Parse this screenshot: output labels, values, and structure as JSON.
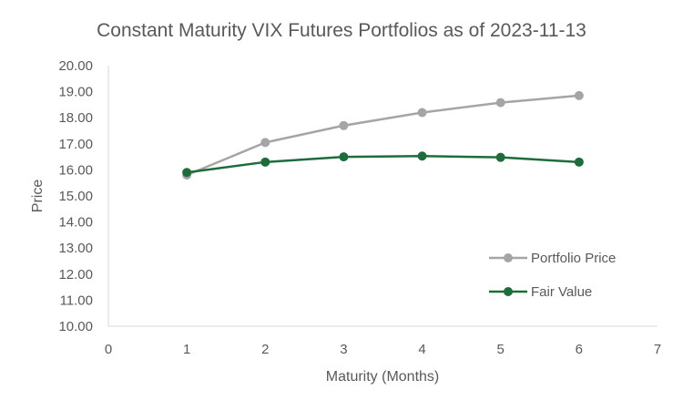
{
  "chart_data": {
    "type": "line",
    "title": "Constant Maturity VIX Futures Portfolios as of 2023-11-13",
    "xlabel": "Maturity (Months)",
    "ylabel": "Price",
    "xlim": [
      0,
      7
    ],
    "ylim": [
      10,
      20
    ],
    "x_ticks": [
      "0",
      "1",
      "2",
      "3",
      "4",
      "5",
      "6",
      "7"
    ],
    "y_ticks": [
      "10.00",
      "11.00",
      "12.00",
      "13.00",
      "14.00",
      "15.00",
      "16.00",
      "17.00",
      "18.00",
      "19.00",
      "20.00"
    ],
    "grid": false,
    "legend_position": "right",
    "series": [
      {
        "name": "Portfolio Price",
        "color": "#a5a5a5",
        "x": [
          1,
          2,
          3,
          4,
          5,
          6
        ],
        "values": [
          15.8,
          17.05,
          17.7,
          18.2,
          18.58,
          18.85
        ]
      },
      {
        "name": "Fair Value",
        "color": "#1e6b3c",
        "x": [
          1,
          2,
          3,
          4,
          5,
          6
        ],
        "values": [
          15.9,
          16.3,
          16.5,
          16.53,
          16.48,
          16.3
        ]
      }
    ]
  }
}
